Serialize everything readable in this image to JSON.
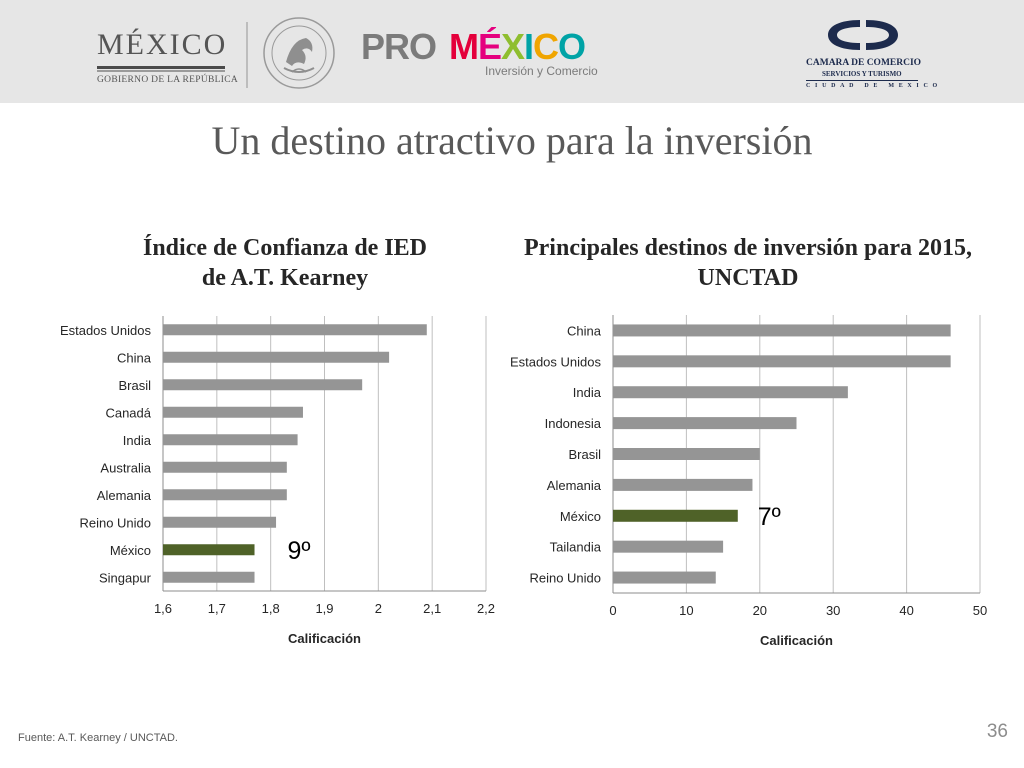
{
  "header": {
    "mexico_logo": {
      "word": "MÉXICO",
      "sub": "GOBIERNO DE LA REPÚBLICA"
    },
    "promexico_logo": {
      "pro": "PRO",
      "mexico": "MÉXICO",
      "sub": "Inversión y Comercio"
    },
    "camara_logo": {
      "line1": "CAMARA DE COMERCIO",
      "line2": "SERVICIOS Y TURISMO",
      "line3": "CIUDAD DE MEXICO"
    },
    "colors": {
      "bar": "#a6a6a6",
      "seal": "#9a9a9a",
      "camara": "#1d2b4d"
    }
  },
  "slide_title": "Un destino atractivo para la inversión",
  "chart_data": [
    {
      "type": "bar",
      "orientation": "horizontal",
      "title": "Índice de Confianza de IED de A.T. Kearney",
      "title_lines": [
        "Índice de Confianza de IED",
        "de A.T. Kearney"
      ],
      "xlabel": "Calificación",
      "categories": [
        "Estados Unidos",
        "China",
        "Brasil",
        "Canadá",
        "India",
        "Australia",
        "Alemania",
        "Reino Unido",
        "México",
        "Singapur"
      ],
      "values": [
        2.09,
        2.02,
        1.97,
        1.86,
        1.85,
        1.83,
        1.83,
        1.81,
        1.77,
        1.77
      ],
      "xlim": [
        1.6,
        2.2
      ],
      "xticks": [
        1.6,
        1.7,
        1.8,
        1.9,
        2.0,
        2.1,
        2.2
      ],
      "xtick_labels": [
        "1,6",
        "1,7",
        "1,8",
        "1,9",
        "2",
        "2,1",
        "2,2"
      ],
      "grid": true,
      "highlight": {
        "category": "México",
        "label": "9º"
      },
      "colors": {
        "bar": "#959595",
        "highlight": "#4f6228",
        "grid": "#bfbfbf"
      }
    },
    {
      "type": "bar",
      "orientation": "horizontal",
      "title": "Principales destinos de inversión para 2015, UNCTAD",
      "title_lines": [
        "Principales destinos de inversión para 2015,",
        "UNCTAD"
      ],
      "xlabel": "Calificación",
      "categories": [
        "China",
        "Estados Unidos",
        "India",
        "Indonesia",
        "Brasil",
        "Alemania",
        "México",
        "Tailandia",
        "Reino Unido"
      ],
      "values": [
        46,
        46,
        32,
        25,
        20,
        19,
        17,
        15,
        14
      ],
      "xlim": [
        0,
        50
      ],
      "xticks": [
        0,
        10,
        20,
        30,
        40,
        50
      ],
      "xtick_labels": [
        "0",
        "10",
        "20",
        "30",
        "40",
        "50"
      ],
      "grid": true,
      "highlight": {
        "category": "México",
        "label": "7º"
      },
      "colors": {
        "bar": "#959595",
        "highlight": "#4f6228",
        "grid": "#bfbfbf"
      }
    }
  ],
  "footnote": "Fuente: A.T. Kearney / UNCTAD.",
  "page_number": "36"
}
